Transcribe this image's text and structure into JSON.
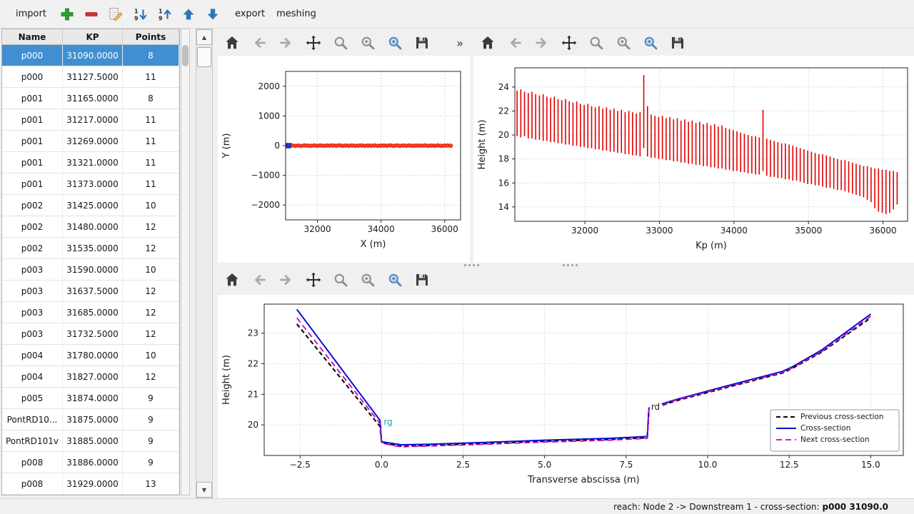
{
  "app": {
    "toolbar": {
      "import_label": "import",
      "export_label": "export",
      "meshing_label": "meshing",
      "icons": [
        "plus-icon",
        "minus-icon",
        "edit-icon",
        "sort-ascending-icon",
        "sort-descending-icon",
        "move-up-icon",
        "move-down-icon"
      ],
      "accent_green": "#2f9e33",
      "accent_red": "#cf3434",
      "accent_blue": "#2f77b8"
    },
    "status": {
      "prefix": "reach: Node 2 -> Downstream 1 - cross-section: ",
      "current": "p000 31090.0"
    }
  },
  "scrollbar": {
    "up": "▲",
    "down": "▼"
  },
  "nav_toolbar": {
    "buttons": [
      "home",
      "back",
      "forward",
      "pan",
      "zoom",
      "zoom-original",
      "zoom-region",
      "save"
    ],
    "overflow_label": "»"
  },
  "table": {
    "columns": [
      "Name",
      "KP",
      "Points"
    ],
    "selected_index": 0,
    "selected_color": "#3f8fd2",
    "rows": [
      [
        "p000",
        "31090.0000",
        "8"
      ],
      [
        "p000",
        "31127.5000",
        "11"
      ],
      [
        "p001",
        "31165.0000",
        "8"
      ],
      [
        "p001",
        "31217.0000",
        "11"
      ],
      [
        "p001",
        "31269.0000",
        "11"
      ],
      [
        "p001",
        "31321.0000",
        "11"
      ],
      [
        "p001",
        "31373.0000",
        "11"
      ],
      [
        "p002",
        "31425.0000",
        "10"
      ],
      [
        "p002",
        "31480.0000",
        "12"
      ],
      [
        "p002",
        "31535.0000",
        "12"
      ],
      [
        "p003",
        "31590.0000",
        "10"
      ],
      [
        "p003",
        "31637.5000",
        "12"
      ],
      [
        "p003",
        "31685.0000",
        "12"
      ],
      [
        "p003",
        "31732.5000",
        "12"
      ],
      [
        "p004",
        "31780.0000",
        "10"
      ],
      [
        "p004",
        "31827.0000",
        "12"
      ],
      [
        "p005",
        "31874.0000",
        "9"
      ],
      [
        "PontRD10...",
        "31875.0000",
        "9"
      ],
      [
        "PontRD101v",
        "31885.0000",
        "9"
      ],
      [
        "p008",
        "31886.0000",
        "9"
      ],
      [
        "p008",
        "31929.0000",
        "13"
      ]
    ]
  },
  "chart_data": [
    {
      "id": "plan-view",
      "type": "scatter",
      "title": "",
      "xlabel": "X (m)",
      "ylabel": "Y (m)",
      "xlim": [
        31000,
        36500
      ],
      "ylim": [
        -2500,
        2500
      ],
      "xticks": [
        32000,
        34000,
        36000
      ],
      "xtick_labels": [
        "32000",
        "34000",
        "36000"
      ],
      "yticks": [
        -2000,
        -1000,
        0,
        1000,
        2000
      ],
      "ytick_labels": [
        "−2000",
        "−1000",
        "0",
        "1000",
        "2000"
      ],
      "grid": true,
      "series": [
        {
          "name": "river-axis-points",
          "marker": "circle",
          "color": "#ff4422",
          "edge": "#cc1100",
          "size": 2.6,
          "points": [
            [
              31090,
              0
            ],
            [
              31190,
              8
            ],
            [
              31290,
              -6
            ],
            [
              31390,
              4
            ],
            [
              31490,
              -8
            ],
            [
              31590,
              6
            ],
            [
              31690,
              0
            ],
            [
              31790,
              -5
            ],
            [
              31890,
              7
            ],
            [
              31990,
              -3
            ],
            [
              32090,
              5
            ],
            [
              32190,
              -7
            ],
            [
              32290,
              3
            ],
            [
              32390,
              0
            ],
            [
              32490,
              6
            ],
            [
              32590,
              -4
            ],
            [
              32690,
              8
            ],
            [
              32790,
              -6
            ],
            [
              32890,
              2
            ],
            [
              32990,
              -2
            ],
            [
              33090,
              5
            ],
            [
              33190,
              -5
            ],
            [
              33290,
              0
            ],
            [
              33390,
              7
            ],
            [
              33490,
              -7
            ],
            [
              33590,
              4
            ],
            [
              33690,
              -4
            ],
            [
              33790,
              6
            ],
            [
              33890,
              -6
            ],
            [
              33990,
              0
            ],
            [
              34090,
              3
            ],
            [
              34190,
              -3
            ],
            [
              34290,
              8
            ],
            [
              34390,
              -8
            ],
            [
              34490,
              5
            ],
            [
              34590,
              -5
            ],
            [
              34690,
              2
            ],
            [
              34790,
              -2
            ],
            [
              34890,
              7
            ],
            [
              34990,
              -7
            ],
            [
              35090,
              0
            ],
            [
              35190,
              4
            ],
            [
              35290,
              -4
            ],
            [
              35390,
              6
            ],
            [
              35490,
              -6
            ],
            [
              35590,
              3
            ],
            [
              35690,
              -3
            ],
            [
              35790,
              5
            ],
            [
              35890,
              -5
            ],
            [
              35990,
              0
            ],
            [
              36090,
              2
            ],
            [
              36190,
              -2
            ]
          ]
        },
        {
          "name": "selected-cross-section-point",
          "marker": "square",
          "color": "#2233cc",
          "edge": "#1122aa",
          "size": 3.2,
          "points": [
            [
              31090,
              0
            ]
          ]
        }
      ]
    },
    {
      "id": "longitudinal-profile",
      "type": "vlines",
      "title": "",
      "xlabel": "Kp (m)",
      "ylabel": "Height (m)",
      "xlim": [
        31060,
        36330
      ],
      "ylim": [
        12.8,
        25.6
      ],
      "xticks": [
        32000,
        33000,
        34000,
        35000,
        36000
      ],
      "xtick_labels": [
        "32000",
        "33000",
        "34000",
        "35000",
        "36000"
      ],
      "yticks": [
        14,
        16,
        18,
        20,
        22,
        24
      ],
      "ytick_labels": [
        "14",
        "16",
        "18",
        "20",
        "22",
        "24"
      ],
      "grid": true,
      "color": "#e00000",
      "line_width": 1.6,
      "segments": [
        [
          31090,
          19.9,
          23.7
        ],
        [
          31140,
          19.8,
          23.8
        ],
        [
          31190,
          19.9,
          23.6
        ],
        [
          31240,
          19.7,
          23.5
        ],
        [
          31290,
          19.7,
          23.6
        ],
        [
          31340,
          19.6,
          23.4
        ],
        [
          31390,
          19.6,
          23.3
        ],
        [
          31440,
          19.5,
          23.4
        ],
        [
          31490,
          19.5,
          23.2
        ],
        [
          31540,
          19.4,
          23.1
        ],
        [
          31590,
          19.4,
          23.2
        ],
        [
          31640,
          19.3,
          23.0
        ],
        [
          31690,
          19.3,
          22.9
        ],
        [
          31740,
          19.2,
          23.0
        ],
        [
          31790,
          19.2,
          22.8
        ],
        [
          31840,
          19.1,
          22.7
        ],
        [
          31890,
          19.1,
          22.8
        ],
        [
          31940,
          19.0,
          22.6
        ],
        [
          31990,
          19.0,
          22.5
        ],
        [
          32040,
          18.9,
          22.6
        ],
        [
          32090,
          18.9,
          22.4
        ],
        [
          32140,
          18.8,
          22.3
        ],
        [
          32190,
          18.8,
          22.4
        ],
        [
          32240,
          18.7,
          22.2
        ],
        [
          32290,
          18.7,
          22.3
        ],
        [
          32340,
          18.6,
          22.1
        ],
        [
          32390,
          18.6,
          22.2
        ],
        [
          32440,
          18.5,
          22.0
        ],
        [
          32490,
          18.5,
          22.1
        ],
        [
          32540,
          18.4,
          21.9
        ],
        [
          32590,
          18.4,
          22.0
        ],
        [
          32640,
          18.3,
          21.9
        ],
        [
          32690,
          18.3,
          21.8
        ],
        [
          32740,
          18.2,
          21.9
        ],
        [
          32790,
          18.9,
          25.0
        ],
        [
          32840,
          18.2,
          22.4
        ],
        [
          32890,
          18.1,
          21.7
        ],
        [
          32940,
          18.1,
          21.6
        ],
        [
          32990,
          18.0,
          21.5
        ],
        [
          33040,
          18.0,
          21.6
        ],
        [
          33090,
          17.9,
          21.4
        ],
        [
          33140,
          17.9,
          21.5
        ],
        [
          33190,
          17.8,
          21.3
        ],
        [
          33240,
          17.8,
          21.4
        ],
        [
          33290,
          17.7,
          21.2
        ],
        [
          33340,
          17.7,
          21.3
        ],
        [
          33390,
          17.6,
          21.1
        ],
        [
          33440,
          17.6,
          21.2
        ],
        [
          33490,
          17.5,
          21.0
        ],
        [
          33540,
          17.5,
          21.1
        ],
        [
          33590,
          17.4,
          20.9
        ],
        [
          33640,
          17.4,
          21.0
        ],
        [
          33690,
          17.3,
          20.8
        ],
        [
          33740,
          17.3,
          20.9
        ],
        [
          33790,
          17.2,
          20.7
        ],
        [
          33840,
          17.2,
          20.8
        ],
        [
          33890,
          17.1,
          20.6
        ],
        [
          33940,
          17.1,
          20.5
        ],
        [
          33990,
          17.0,
          20.4
        ],
        [
          34040,
          17.0,
          20.3
        ],
        [
          34090,
          16.9,
          20.2
        ],
        [
          34140,
          16.9,
          20.1
        ],
        [
          34190,
          16.8,
          20.0
        ],
        [
          34240,
          16.8,
          19.9
        ],
        [
          34290,
          16.7,
          19.9
        ],
        [
          34340,
          16.7,
          19.8
        ],
        [
          34390,
          17.0,
          22.1
        ],
        [
          34440,
          16.6,
          19.7
        ],
        [
          34490,
          16.5,
          19.6
        ],
        [
          34540,
          16.5,
          19.5
        ],
        [
          34590,
          16.4,
          19.4
        ],
        [
          34640,
          16.4,
          19.3
        ],
        [
          34690,
          16.3,
          19.3
        ],
        [
          34740,
          16.3,
          19.2
        ],
        [
          34790,
          16.2,
          19.1
        ],
        [
          34840,
          16.2,
          19.0
        ],
        [
          34890,
          16.1,
          18.9
        ],
        [
          34940,
          16.0,
          18.8
        ],
        [
          34990,
          15.9,
          18.7
        ],
        [
          35040,
          15.9,
          18.6
        ],
        [
          35090,
          15.8,
          18.5
        ],
        [
          35140,
          15.8,
          18.4
        ],
        [
          35190,
          15.7,
          18.4
        ],
        [
          35240,
          15.6,
          18.3
        ],
        [
          35290,
          15.6,
          18.2
        ],
        [
          35340,
          15.5,
          18.1
        ],
        [
          35390,
          15.4,
          18.0
        ],
        [
          35440,
          15.4,
          17.9
        ],
        [
          35490,
          15.3,
          17.9
        ],
        [
          35540,
          15.2,
          17.8
        ],
        [
          35590,
          15.1,
          17.7
        ],
        [
          35640,
          15.0,
          17.6
        ],
        [
          35690,
          14.9,
          17.5
        ],
        [
          35740,
          14.8,
          17.4
        ],
        [
          35790,
          14.6,
          17.4
        ],
        [
          35840,
          14.4,
          17.3
        ],
        [
          35890,
          13.9,
          17.2
        ],
        [
          35940,
          13.6,
          17.2
        ],
        [
          35990,
          13.5,
          17.1
        ],
        [
          36040,
          13.4,
          17.1
        ],
        [
          36090,
          13.5,
          17.0
        ],
        [
          36140,
          13.8,
          17.0
        ],
        [
          36190,
          14.2,
          16.9
        ]
      ]
    },
    {
      "id": "cross-section",
      "type": "line",
      "title": "",
      "xlabel": "Transverse abscissa (m)",
      "ylabel": "Height (m)",
      "xlim": [
        -3.6,
        16.0
      ],
      "ylim": [
        19.0,
        23.95
      ],
      "xticks": [
        -2.5,
        0,
        2.5,
        5,
        7.5,
        10,
        12.5,
        15
      ],
      "xtick_labels": [
        "−2.5",
        "0.0",
        "2.5",
        "5.0",
        "7.5",
        "10.0",
        "12.5",
        "15.0"
      ],
      "yticks": [
        20,
        21,
        22,
        23
      ],
      "ytick_labels": [
        "20",
        "21",
        "22",
        "23"
      ],
      "grid": true,
      "legend": {
        "position": "lower right"
      },
      "series": [
        {
          "name": "Previous cross-section",
          "color": "#111111",
          "dash": "6,4",
          "width": 2.2,
          "points": [
            [
              -2.6,
              23.3
            ],
            [
              -0.05,
              19.95
            ],
            [
              0,
              19.42
            ],
            [
              0.6,
              19.3
            ],
            [
              1.5,
              19.33
            ],
            [
              3,
              19.38
            ],
            [
              5,
              19.46
            ],
            [
              7,
              19.52
            ],
            [
              8.15,
              19.58
            ],
            [
              8.2,
              20.5
            ],
            [
              9,
              20.78
            ],
            [
              10.5,
              21.2
            ],
            [
              12.3,
              21.7
            ],
            [
              12.6,
              21.85
            ],
            [
              13.5,
              22.38
            ],
            [
              15,
              23.5
            ]
          ]
        },
        {
          "name": "Cross-section",
          "color": "#0010d0",
          "dash": "",
          "width": 2,
          "points": [
            [
              -2.6,
              23.78
            ],
            [
              -0.05,
              20.15
            ],
            [
              0,
              19.45
            ],
            [
              0.6,
              19.35
            ],
            [
              1.5,
              19.37
            ],
            [
              3,
              19.42
            ],
            [
              5,
              19.5
            ],
            [
              7,
              19.56
            ],
            [
              8.15,
              19.62
            ],
            [
              8.2,
              20.55
            ],
            [
              9,
              20.82
            ],
            [
              10.5,
              21.25
            ],
            [
              12.3,
              21.75
            ],
            [
              12.6,
              21.9
            ],
            [
              13.5,
              22.45
            ],
            [
              15,
              23.62
            ]
          ]
        },
        {
          "name": "Next cross-section",
          "color": "#cc00bb",
          "dash": "8,5",
          "width": 1.8,
          "points": [
            [
              -2.6,
              23.5
            ],
            [
              -0.05,
              20.05
            ],
            [
              0,
              19.4
            ],
            [
              0.6,
              19.28
            ],
            [
              1.5,
              19.31
            ],
            [
              3,
              19.36
            ],
            [
              5,
              19.44
            ],
            [
              7,
              19.5
            ],
            [
              8.15,
              19.56
            ],
            [
              8.2,
              20.5
            ],
            [
              9,
              20.8
            ],
            [
              10.5,
              21.22
            ],
            [
              12.3,
              21.72
            ],
            [
              12.6,
              21.87
            ],
            [
              13.5,
              22.4
            ],
            [
              15,
              23.55
            ]
          ]
        }
      ],
      "annotations": [
        {
          "text": "rg",
          "x": 0.0,
          "y": 20.0,
          "color": "#1fa8a8"
        },
        {
          "text": "rd",
          "x": 8.2,
          "y": 20.5,
          "color": "#222222",
          "bg": "#ffffff"
        }
      ]
    }
  ]
}
